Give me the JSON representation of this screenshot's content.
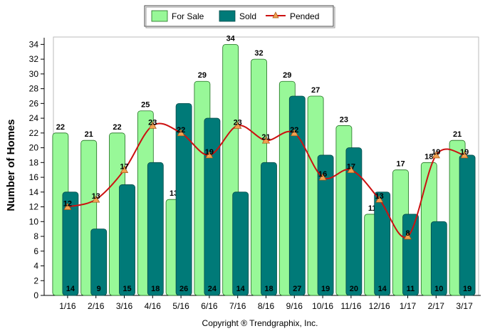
{
  "chart_data": {
    "type": "bar",
    "categories": [
      "1/16",
      "2/16",
      "3/16",
      "4/16",
      "5/16",
      "6/16",
      "7/16",
      "8/16",
      "9/16",
      "10/16",
      "11/16",
      "12/16",
      "1/17",
      "2/17",
      "3/17"
    ],
    "series": [
      {
        "name": "For Sale",
        "type": "bar",
        "color": "#98f898",
        "values": [
          22,
          21,
          22,
          25,
          13,
          29,
          34,
          32,
          29,
          27,
          23,
          11,
          17,
          18,
          21
        ]
      },
      {
        "name": "Sold",
        "type": "bar",
        "color": "#007a78",
        "values": [
          14,
          9,
          15,
          18,
          26,
          24,
          14,
          18,
          27,
          19,
          20,
          14,
          11,
          10,
          19
        ]
      },
      {
        "name": "Pended",
        "type": "line",
        "color": "#cc1111",
        "marker_color": "#f0a050",
        "values": [
          12,
          13,
          17,
          23,
          22,
          19,
          23,
          21,
          22,
          16,
          17,
          13,
          8,
          19,
          19
        ]
      }
    ],
    "ylabel": "Number of Homes",
    "xlabel": "",
    "ylim": [
      0,
      35
    ],
    "yticks": [
      0,
      2,
      4,
      6,
      8,
      10,
      12,
      14,
      16,
      18,
      20,
      22,
      24,
      26,
      28,
      30,
      32,
      34
    ],
    "grid": false,
    "legend": "top-center"
  },
  "footer": {
    "copyright": "Copyright ® Trendgraphix, Inc."
  }
}
